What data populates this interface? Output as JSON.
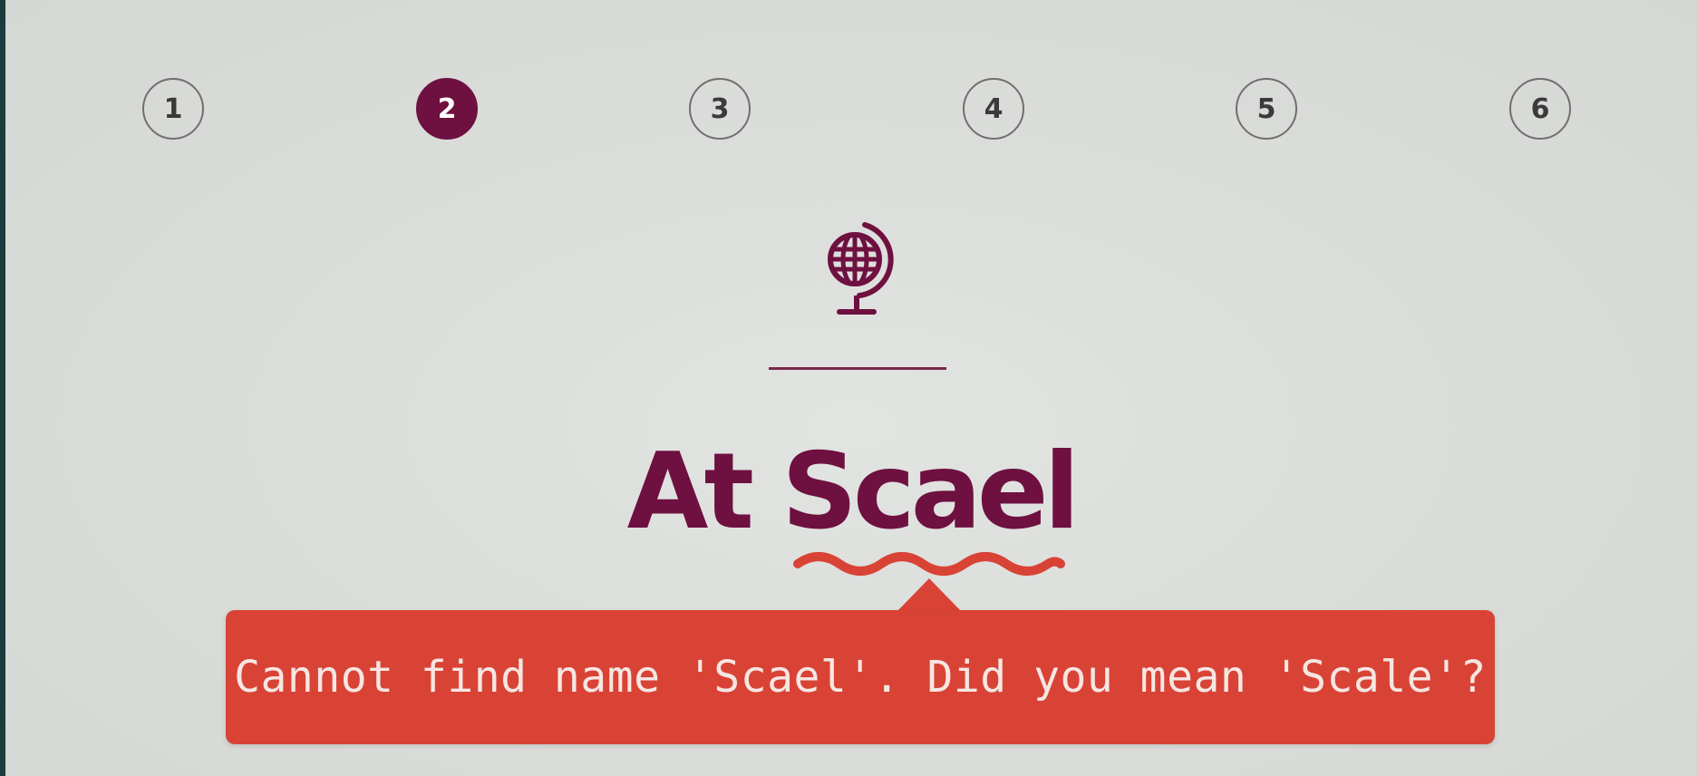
{
  "steps": [
    {
      "label": "1",
      "active": false
    },
    {
      "label": "2",
      "active": true
    },
    {
      "label": "3",
      "active": false
    },
    {
      "label": "4",
      "active": false
    },
    {
      "label": "5",
      "active": false
    },
    {
      "label": "6",
      "active": false
    }
  ],
  "icon": "globe-icon",
  "heading": {
    "prefix": "At ",
    "misspelled_word": "Scael"
  },
  "tooltip": {
    "message": "Cannot find name 'Scael'. Did you mean 'Scale'?"
  },
  "colors": {
    "accent": "#6e1040",
    "error": "#d94335",
    "background": "#dcdedb"
  }
}
